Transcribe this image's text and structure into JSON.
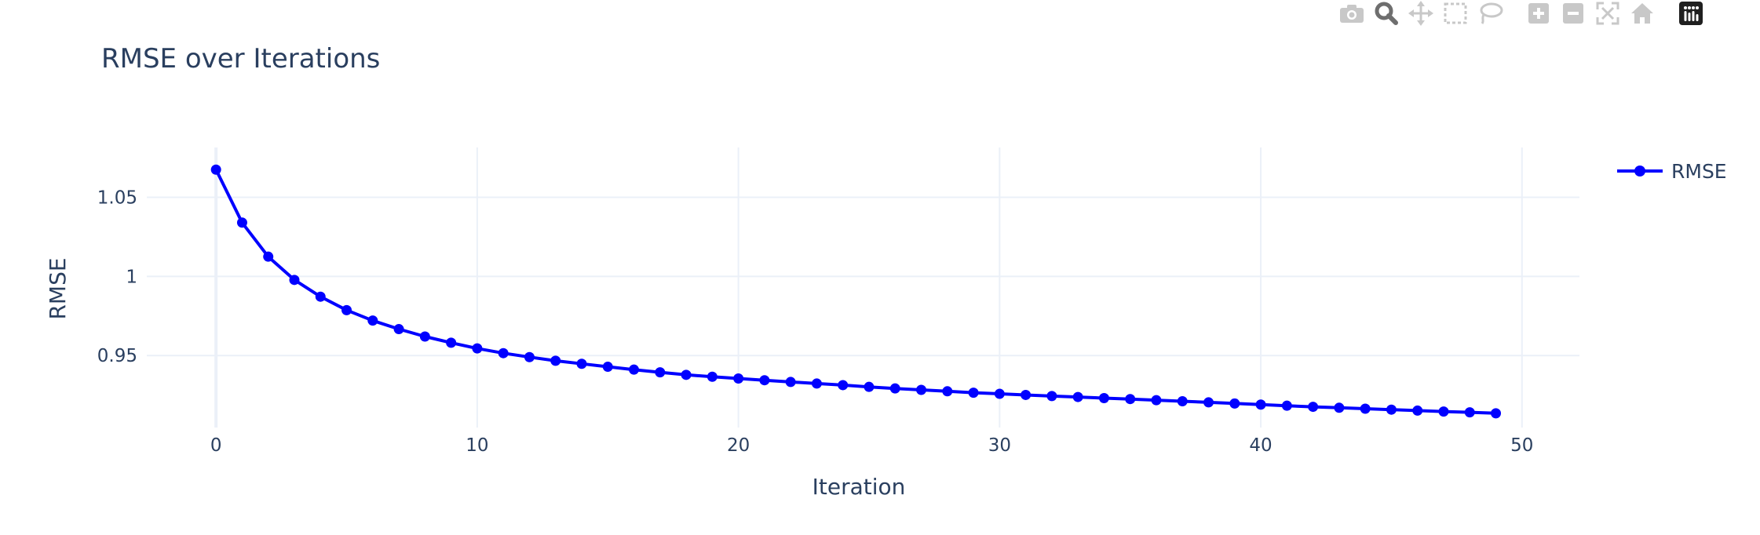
{
  "modebar": {
    "buttons": [
      "camera-icon",
      "zoom-icon",
      "pan-icon",
      "box-select-icon",
      "lasso-icon",
      "zoom-in-icon",
      "zoom-out-icon",
      "autoscale-icon",
      "reset-axes-icon",
      "plotly-logo-icon"
    ]
  },
  "colors": {
    "series": "#0000ff",
    "grid": "#ebf0f8",
    "text": "#2a3f5f",
    "modebar_icon": "#c8c8c8",
    "modebar_active": "#6e6e6e"
  },
  "chart_data": {
    "type": "line",
    "title": "RMSE over Iterations",
    "xlabel": "Iteration",
    "ylabel": "RMSE",
    "xlim": [
      -2.65,
      52.2
    ],
    "ylim": [
      0.9045,
      1.0815
    ],
    "xticks": [
      0,
      10,
      20,
      30,
      40,
      50
    ],
    "xtick_labels": [
      "0",
      "10",
      "20",
      "30",
      "40",
      "50"
    ],
    "yticks": [
      0.95,
      1.0,
      1.05
    ],
    "ytick_labels": [
      "0.95",
      "1",
      "1.05"
    ],
    "grid": true,
    "legend_position": "top-right",
    "series": [
      {
        "name": "RMSE",
        "mode": "lines+markers",
        "x": [
          0,
          1,
          2,
          3,
          4,
          5,
          6,
          7,
          8,
          9,
          10,
          11,
          12,
          13,
          14,
          15,
          16,
          17,
          18,
          19,
          20,
          21,
          22,
          23,
          24,
          25,
          26,
          27,
          28,
          29,
          30,
          31,
          32,
          33,
          34,
          35,
          36,
          37,
          38,
          39,
          40,
          41,
          42,
          43,
          44,
          45,
          46,
          47,
          48,
          49
        ],
        "values": [
          1.0675,
          1.034,
          1.0125,
          0.9978,
          0.9872,
          0.9787,
          0.9721,
          0.9667,
          0.962,
          0.9581,
          0.9545,
          0.9515,
          0.949,
          0.9467,
          0.9448,
          0.9429,
          0.9411,
          0.9394,
          0.9378,
          0.9366,
          0.9355,
          0.9344,
          0.9333,
          0.9323,
          0.9313,
          0.9302,
          0.9292,
          0.9283,
          0.9274,
          0.9265,
          0.9258,
          0.9251,
          0.9244,
          0.9238,
          0.9231,
          0.9225,
          0.9218,
          0.9211,
          0.9204,
          0.9197,
          0.919,
          0.9183,
          0.9176,
          0.917,
          0.9164,
          0.9158,
          0.9152,
          0.9146,
          0.9141,
          0.9135
        ]
      }
    ]
  }
}
